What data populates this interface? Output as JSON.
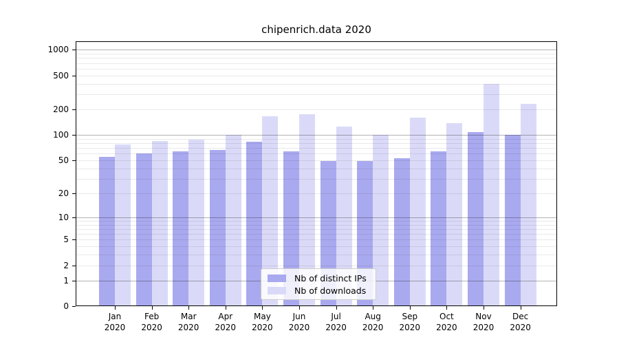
{
  "title": "chipenrich.data 2020",
  "chart_data": {
    "type": "bar",
    "title": "chipenrich.data 2020",
    "y_scale": "log1p",
    "categories": [
      "Jan",
      "Feb",
      "Mar",
      "Apr",
      "May",
      "Jun",
      "Jul",
      "Aug",
      "Sep",
      "Oct",
      "Nov",
      "Dec"
    ],
    "year": "2020",
    "series": [
      {
        "name": "Nb of distinct IPs",
        "color": "#a9a9ef",
        "values": [
          55,
          60,
          64,
          66,
          83,
          64,
          49,
          49,
          53,
          64,
          107,
          100
        ]
      },
      {
        "name": "Nb of downloads",
        "color": "#dadaf8",
        "values": [
          77,
          84,
          88,
          100,
          167,
          175,
          125,
          100,
          160,
          138,
          400,
          233
        ]
      }
    ],
    "yticks": [
      0,
      1,
      2,
      5,
      10,
      20,
      50,
      100,
      200,
      500,
      1000
    ],
    "ylim": [
      0,
      1250
    ],
    "xlabel": "",
    "ylabel": "",
    "grid": "horizontal; major gridlines at 1,10,100,1000; minor gridlines between",
    "legend_position": "bottom-center"
  }
}
